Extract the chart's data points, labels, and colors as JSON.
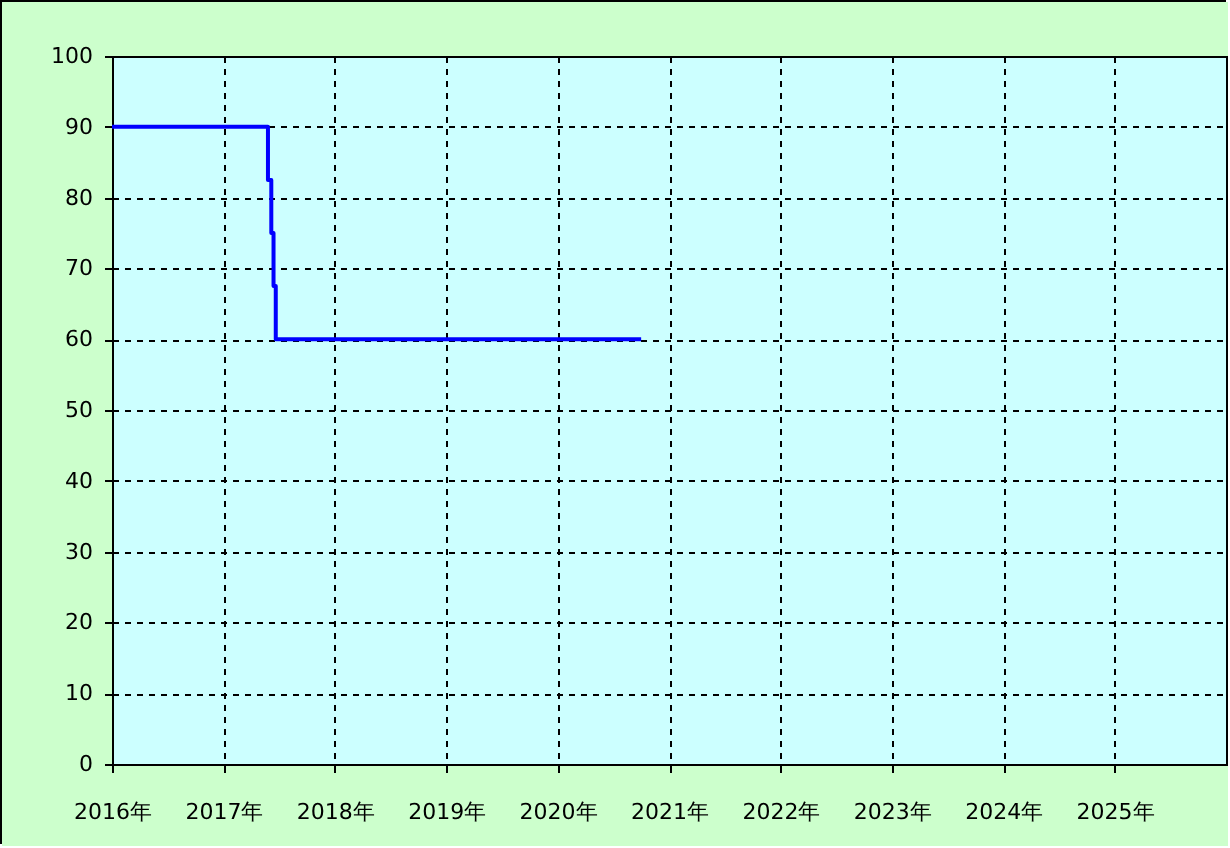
{
  "chart_data": {
    "type": "line",
    "x": [
      2016,
      2017.4,
      2017.4,
      2017.43,
      2017.43,
      2017.45,
      2017.45,
      2017.47,
      2017.47,
      2020.75
    ],
    "series": [
      {
        "color": "#0000ff",
        "values": [
          90,
          90,
          82.5,
          82.5,
          75,
          75,
          67.5,
          67.5,
          60,
          60
        ]
      }
    ],
    "xlim": [
      2016,
      2026
    ],
    "xticks": [
      {
        "value": 2016,
        "label": "2016年"
      },
      {
        "value": 2017,
        "label": "2017年"
      },
      {
        "value": 2018,
        "label": "2018年"
      },
      {
        "value": 2019,
        "label": "2019年"
      },
      {
        "value": 2020,
        "label": "2020年"
      },
      {
        "value": 2021,
        "label": "2021年"
      },
      {
        "value": 2022,
        "label": "2022年"
      },
      {
        "value": 2023,
        "label": "2023年"
      },
      {
        "value": 2024,
        "label": "2024年"
      },
      {
        "value": 2025,
        "label": "2025年"
      }
    ],
    "ylim": [
      0,
      100
    ],
    "yticks": [
      0,
      10,
      20,
      30,
      40,
      50,
      60,
      70,
      80,
      90,
      100
    ],
    "grid": true,
    "line_style": "solid"
  }
}
